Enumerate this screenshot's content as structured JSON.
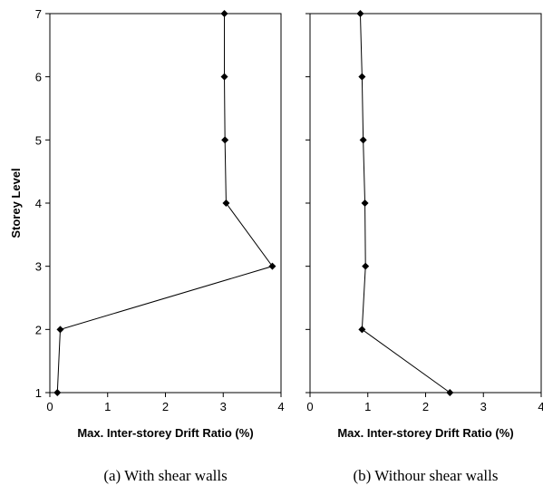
{
  "chart_data": [
    {
      "type": "line",
      "caption": "(a) With shear walls",
      "xlabel": "Max. Inter-storey Drift Ratio (%)",
      "ylabel": "Storey Level",
      "xlim": [
        0,
        4
      ],
      "ylim": [
        1,
        7
      ],
      "xticks": [
        "0",
        "1",
        "2",
        "3",
        "4"
      ],
      "yticks": [
        "1",
        "2",
        "3",
        "4",
        "5",
        "6",
        "7"
      ],
      "grid": false,
      "legend": "none",
      "series": [
        {
          "points": [
            {
              "x": 0.13,
              "y": 1
            },
            {
              "x": 0.18,
              "y": 2
            },
            {
              "x": 3.85,
              "y": 3
            },
            {
              "x": 3.05,
              "y": 4
            },
            {
              "x": 3.03,
              "y": 5
            },
            {
              "x": 3.02,
              "y": 6
            },
            {
              "x": 3.02,
              "y": 7
            }
          ]
        }
      ]
    },
    {
      "type": "line",
      "caption": "(b) Withour shear walls",
      "xlabel": "Max. Inter-storey Drift Ratio (%)",
      "ylabel": "",
      "xlim": [
        0,
        4
      ],
      "ylim": [
        1,
        7
      ],
      "xticks": [
        "0",
        "1",
        "2",
        "3",
        "4"
      ],
      "yticks": [],
      "grid": false,
      "legend": "none",
      "series": [
        {
          "points": [
            {
              "x": 2.42,
              "y": 1
            },
            {
              "x": 0.9,
              "y": 2
            },
            {
              "x": 0.96,
              "y": 3
            },
            {
              "x": 0.95,
              "y": 4
            },
            {
              "x": 0.92,
              "y": 5
            },
            {
              "x": 0.9,
              "y": 6
            },
            {
              "x": 0.87,
              "y": 7
            }
          ]
        }
      ]
    }
  ],
  "style": {
    "line_color": "#000000",
    "marker_color": "#000000",
    "marker": "diamond"
  }
}
